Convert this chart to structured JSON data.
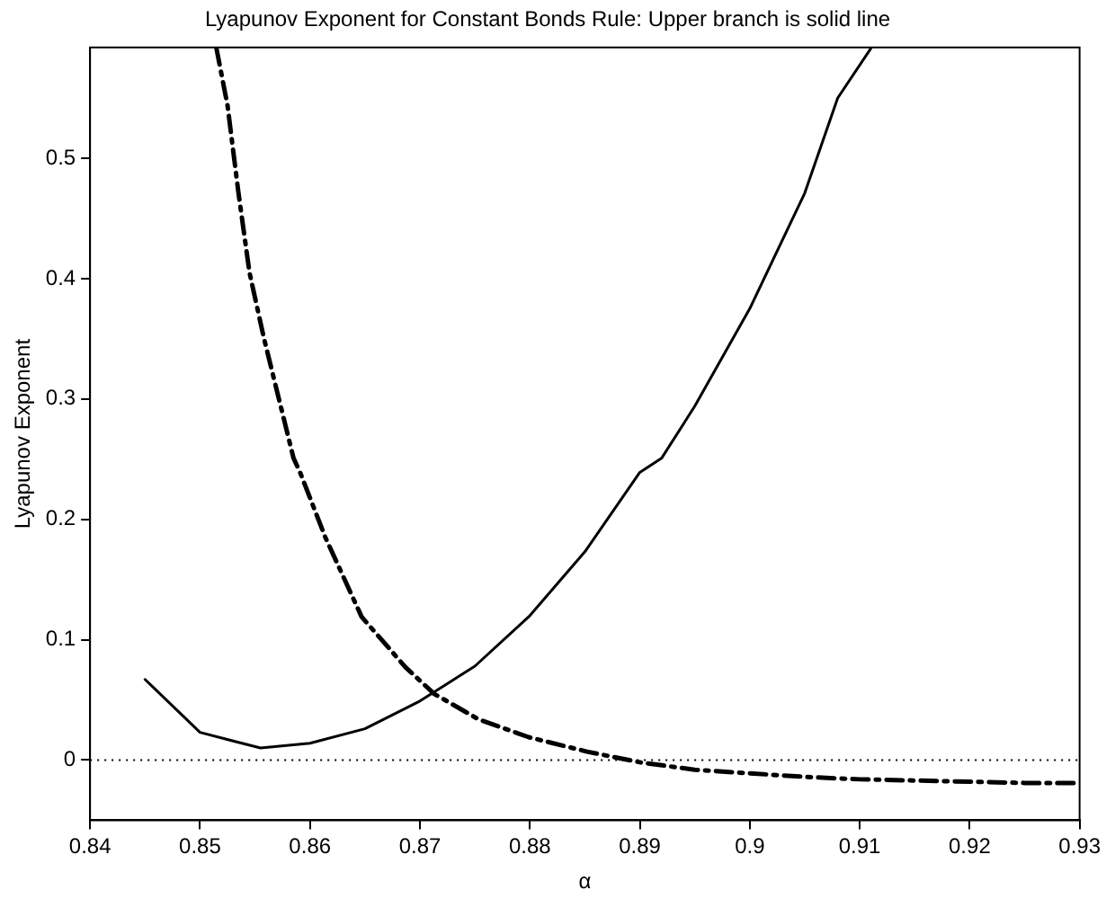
{
  "chart_data": {
    "type": "line",
    "title": "Lyapunov Exponent for Constant Bonds Rule: Upper branch is solid line",
    "xlabel": "α",
    "ylabel": "Lyapunov Exponent",
    "xlim": [
      0.84,
      0.93
    ],
    "ylim": [
      -0.05,
      0.592
    ],
    "xticks": [
      0.84,
      0.85,
      0.86,
      0.87,
      0.88,
      0.89,
      0.9,
      0.91,
      0.92,
      0.93
    ],
    "yticks": [
      0,
      0.1,
      0.2,
      0.3,
      0.4,
      0.5
    ],
    "grid": false,
    "legend": false,
    "marker": "none",
    "ref_lines": [
      {
        "axis": "y",
        "value": 0,
        "line_style": "dotted",
        "color": "#000000"
      }
    ],
    "series": [
      {
        "color": "#000000",
        "line_style": "solid",
        "x": [
          0.845,
          0.85,
          0.8555,
          0.86,
          0.865,
          0.87,
          0.875,
          0.88,
          0.885,
          0.89,
          0.892,
          0.895,
          0.9,
          0.905,
          0.908,
          0.911
        ],
        "values": [
          0.067,
          0.023,
          0.01,
          0.014,
          0.026,
          0.049,
          0.078,
          0.12,
          0.173,
          0.239,
          0.251,
          0.294,
          0.375,
          0.471,
          0.55,
          0.591
        ]
      },
      {
        "color": "#000000",
        "line_style": "dashed",
        "x": [
          0.8515,
          0.8525,
          0.8535,
          0.8545,
          0.8558,
          0.8585,
          0.8591,
          0.8614,
          0.8647,
          0.8687,
          0.8713,
          0.8753,
          0.8799,
          0.8852,
          0.8901,
          0.895,
          0.9,
          0.905,
          0.91,
          0.915,
          0.92,
          0.925,
          0.93
        ],
        "values": [
          0.591,
          0.544,
          0.471,
          0.405,
          0.351,
          0.251,
          0.239,
          0.185,
          0.119,
          0.077,
          0.055,
          0.034,
          0.019,
          0.007,
          -0.002,
          -0.008,
          -0.011,
          -0.014,
          -0.016,
          -0.017,
          -0.018,
          -0.019,
          -0.019
        ]
      }
    ]
  }
}
